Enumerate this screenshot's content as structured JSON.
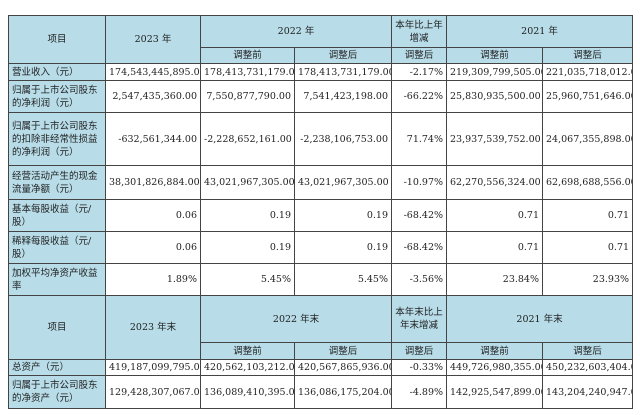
{
  "header1": {
    "item": "项目",
    "y2023": "2023 年",
    "y2022": "2022 年",
    "change": "本年比上年增减",
    "y2021": "2021 年",
    "before": "调整前",
    "after": "调整后"
  },
  "rows1": [
    {
      "label": "营业收入（元）",
      "v": [
        "174,543,445,895.00",
        "178,413,731,179.00",
        "178,413,731,179.00",
        "-2.17%",
        "219,309,799,505.00",
        "221,035,718,012.00"
      ]
    },
    {
      "label": "归属于上市公司股东的净利润（元）",
      "v": [
        "2,547,435,360.00",
        "7,550,877,790.00",
        "7,541,423,198.00",
        "-66.22%",
        "25,830,935,500.00",
        "25,960,751,646.00"
      ]
    },
    {
      "label": "归属于上市公司股东的扣除非经常性损益的净利润（元）",
      "v": [
        "-632,561,344.00",
        "-2,228,652,161.00",
        "-2,238,106,753.00",
        "71.74%",
        "23,937,539,752.00",
        "24,067,355,898.00"
      ]
    },
    {
      "label": "经营活动产生的现金流量净额（元）",
      "v": [
        "38,301,826,884.00",
        "43,021,967,305.00",
        "43,021,967,305.00",
        "-10.97%",
        "62,270,556,324.00",
        "62,698,688,556.00"
      ]
    },
    {
      "label": "基本每股收益（元/股）",
      "v": [
        "0.06",
        "0.19",
        "0.19",
        "-68.42%",
        "0.71",
        "0.71"
      ]
    },
    {
      "label": "稀释每股收益（元/股）",
      "v": [
        "0.06",
        "0.19",
        "0.19",
        "-68.42%",
        "0.71",
        "0.71"
      ]
    },
    {
      "label": "加权平均净资产收益率",
      "v": [
        "1.89%",
        "5.45%",
        "5.45%",
        "-3.56%",
        "23.84%",
        "23.93%"
      ]
    }
  ],
  "header2": {
    "item": "项目",
    "y2023": "2023 年末",
    "y2022": "2022 年末",
    "change": "本年末比上年末增减",
    "y2021": "2021 年末",
    "before": "调整前",
    "after": "调整后"
  },
  "rows2": [
    {
      "label": "总资产（元）",
      "v": [
        "419,187,099,795.00",
        "420,562,103,212.00",
        "420,567,865,936.00",
        "-0.33%",
        "449,726,980,355.00",
        "450,232,603,404.00"
      ]
    },
    {
      "label": "归属于上市公司股东的净资产（元）",
      "v": [
        "129,428,307,067.00",
        "136,089,410,395.00",
        "136,086,175,204.00",
        "-4.89%",
        "142,925,547,899.00",
        "143,204,240,947.00"
      ]
    }
  ]
}
